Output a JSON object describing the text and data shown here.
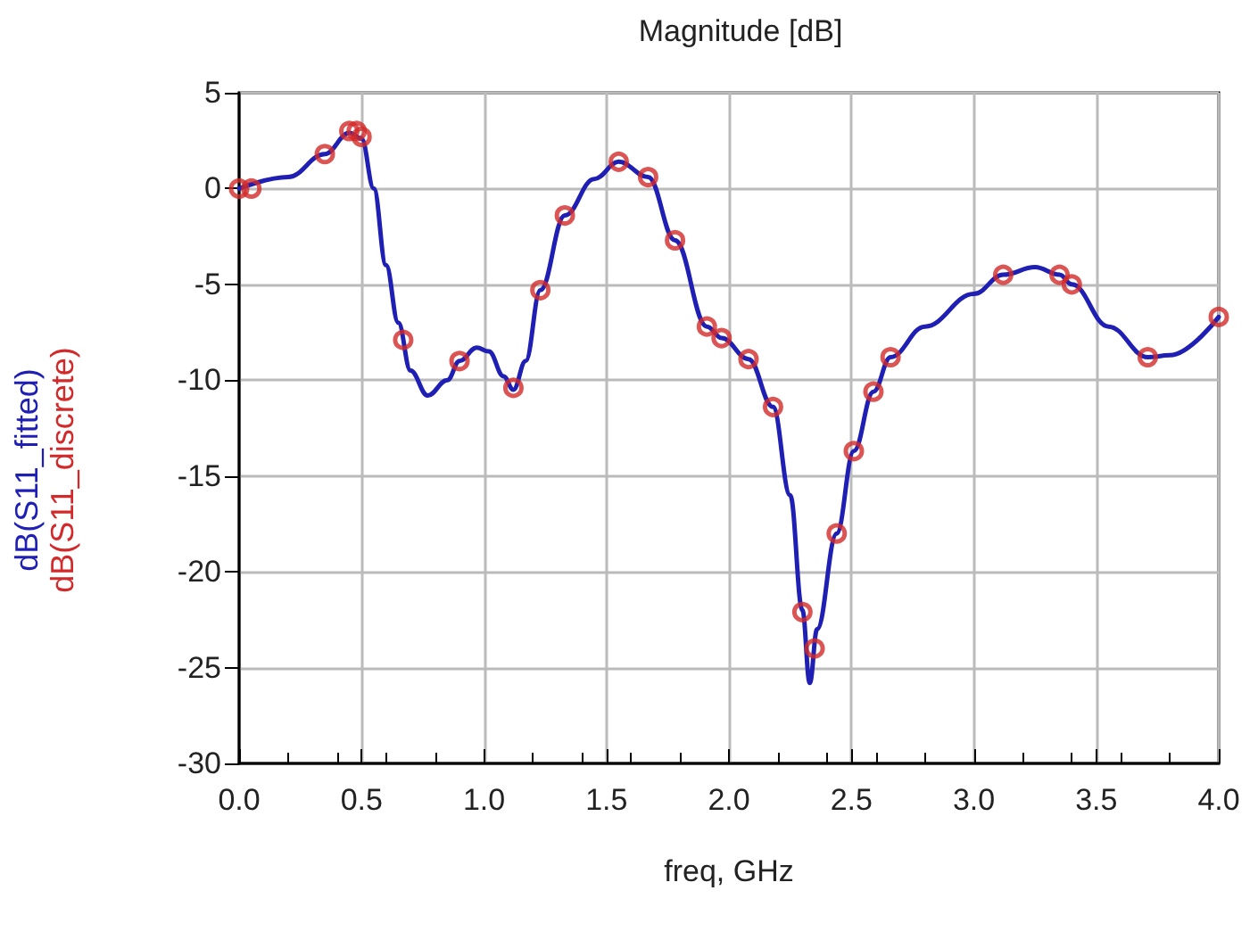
{
  "chart_data": {
    "type": "line",
    "title": "Magnitude [dB]",
    "xlabel": "freq, GHz",
    "xlim": [
      0,
      4
    ],
    "xticks": [
      {
        "value": 0,
        "label": "0.0"
      },
      {
        "value": 0.5,
        "label": "0.5"
      },
      {
        "value": 1,
        "label": "1.0"
      },
      {
        "value": 1.5,
        "label": "1.5"
      },
      {
        "value": 2,
        "label": "2.0"
      },
      {
        "value": 2.5,
        "label": "2.5"
      },
      {
        "value": 3,
        "label": "3.0"
      },
      {
        "value": 3.5,
        "label": "3.5"
      },
      {
        "value": 4,
        "label": "4.0"
      }
    ],
    "ylim": [
      -30,
      5
    ],
    "yticks": [
      -30,
      -25,
      -20,
      -15,
      -10,
      -5,
      0,
      5
    ],
    "grid": true,
    "series": [
      {
        "name": "dB(S11_fitted)",
        "color": "#1f1fb4",
        "marker": "none",
        "line_style": "solid",
        "x": [
          0,
          0.2,
          0.35,
          0.45,
          0.5,
          0.55,
          0.6,
          0.65,
          0.7,
          0.77,
          0.85,
          0.9,
          0.97,
          1.02,
          1.08,
          1.12,
          1.17,
          1.23,
          1.33,
          1.45,
          1.55,
          1.67,
          1.78,
          1.91,
          1.97,
          2.08,
          2.18,
          2.25,
          2.3,
          2.33,
          2.36,
          2.44,
          2.51,
          2.59,
          2.66,
          2.8,
          3.0,
          3.12,
          3.25,
          3.35,
          3.4,
          3.55,
          3.71,
          3.8,
          4.0
        ],
        "values": [
          0,
          0.6,
          1.8,
          2.9,
          2.6,
          0,
          -4,
          -7,
          -9.5,
          -10.8,
          -10,
          -9,
          -8.3,
          -8.5,
          -9.8,
          -10.5,
          -9,
          -5.3,
          -1.4,
          0.5,
          1.4,
          0.6,
          -2.7,
          -7.2,
          -7.8,
          -8.9,
          -11.4,
          -16,
          -22,
          -25.8,
          -23,
          -18,
          -13.7,
          -10.6,
          -8.8,
          -7.2,
          -5.5,
          -4.5,
          -4.1,
          -4.5,
          -5,
          -7.2,
          -8.8,
          -8.7,
          -6.7
        ]
      },
      {
        "name": "dB(S11_discrete)",
        "type": "scatter",
        "color": "#d22a2a",
        "marker": "circle",
        "x": [
          0,
          0.05,
          0.35,
          0.45,
          0.48,
          0.5,
          0.67,
          0.9,
          1.12,
          1.23,
          1.33,
          1.55,
          1.67,
          1.78,
          1.91,
          1.97,
          2.08,
          2.18,
          2.3,
          2.35,
          2.44,
          2.51,
          2.59,
          2.66,
          3.12,
          3.35,
          3.4,
          3.71,
          4.0
        ],
        "values": [
          0,
          0,
          1.8,
          3,
          3,
          2.7,
          -7.9,
          -9,
          -10.4,
          -5.3,
          -1.4,
          1.4,
          0.6,
          -2.7,
          -7.2,
          -7.8,
          -8.9,
          -11.4,
          -22.1,
          -24,
          -18,
          -13.7,
          -10.6,
          -8.8,
          -4.5,
          -4.5,
          -5,
          -8.8,
          -6.7
        ]
      }
    ]
  }
}
